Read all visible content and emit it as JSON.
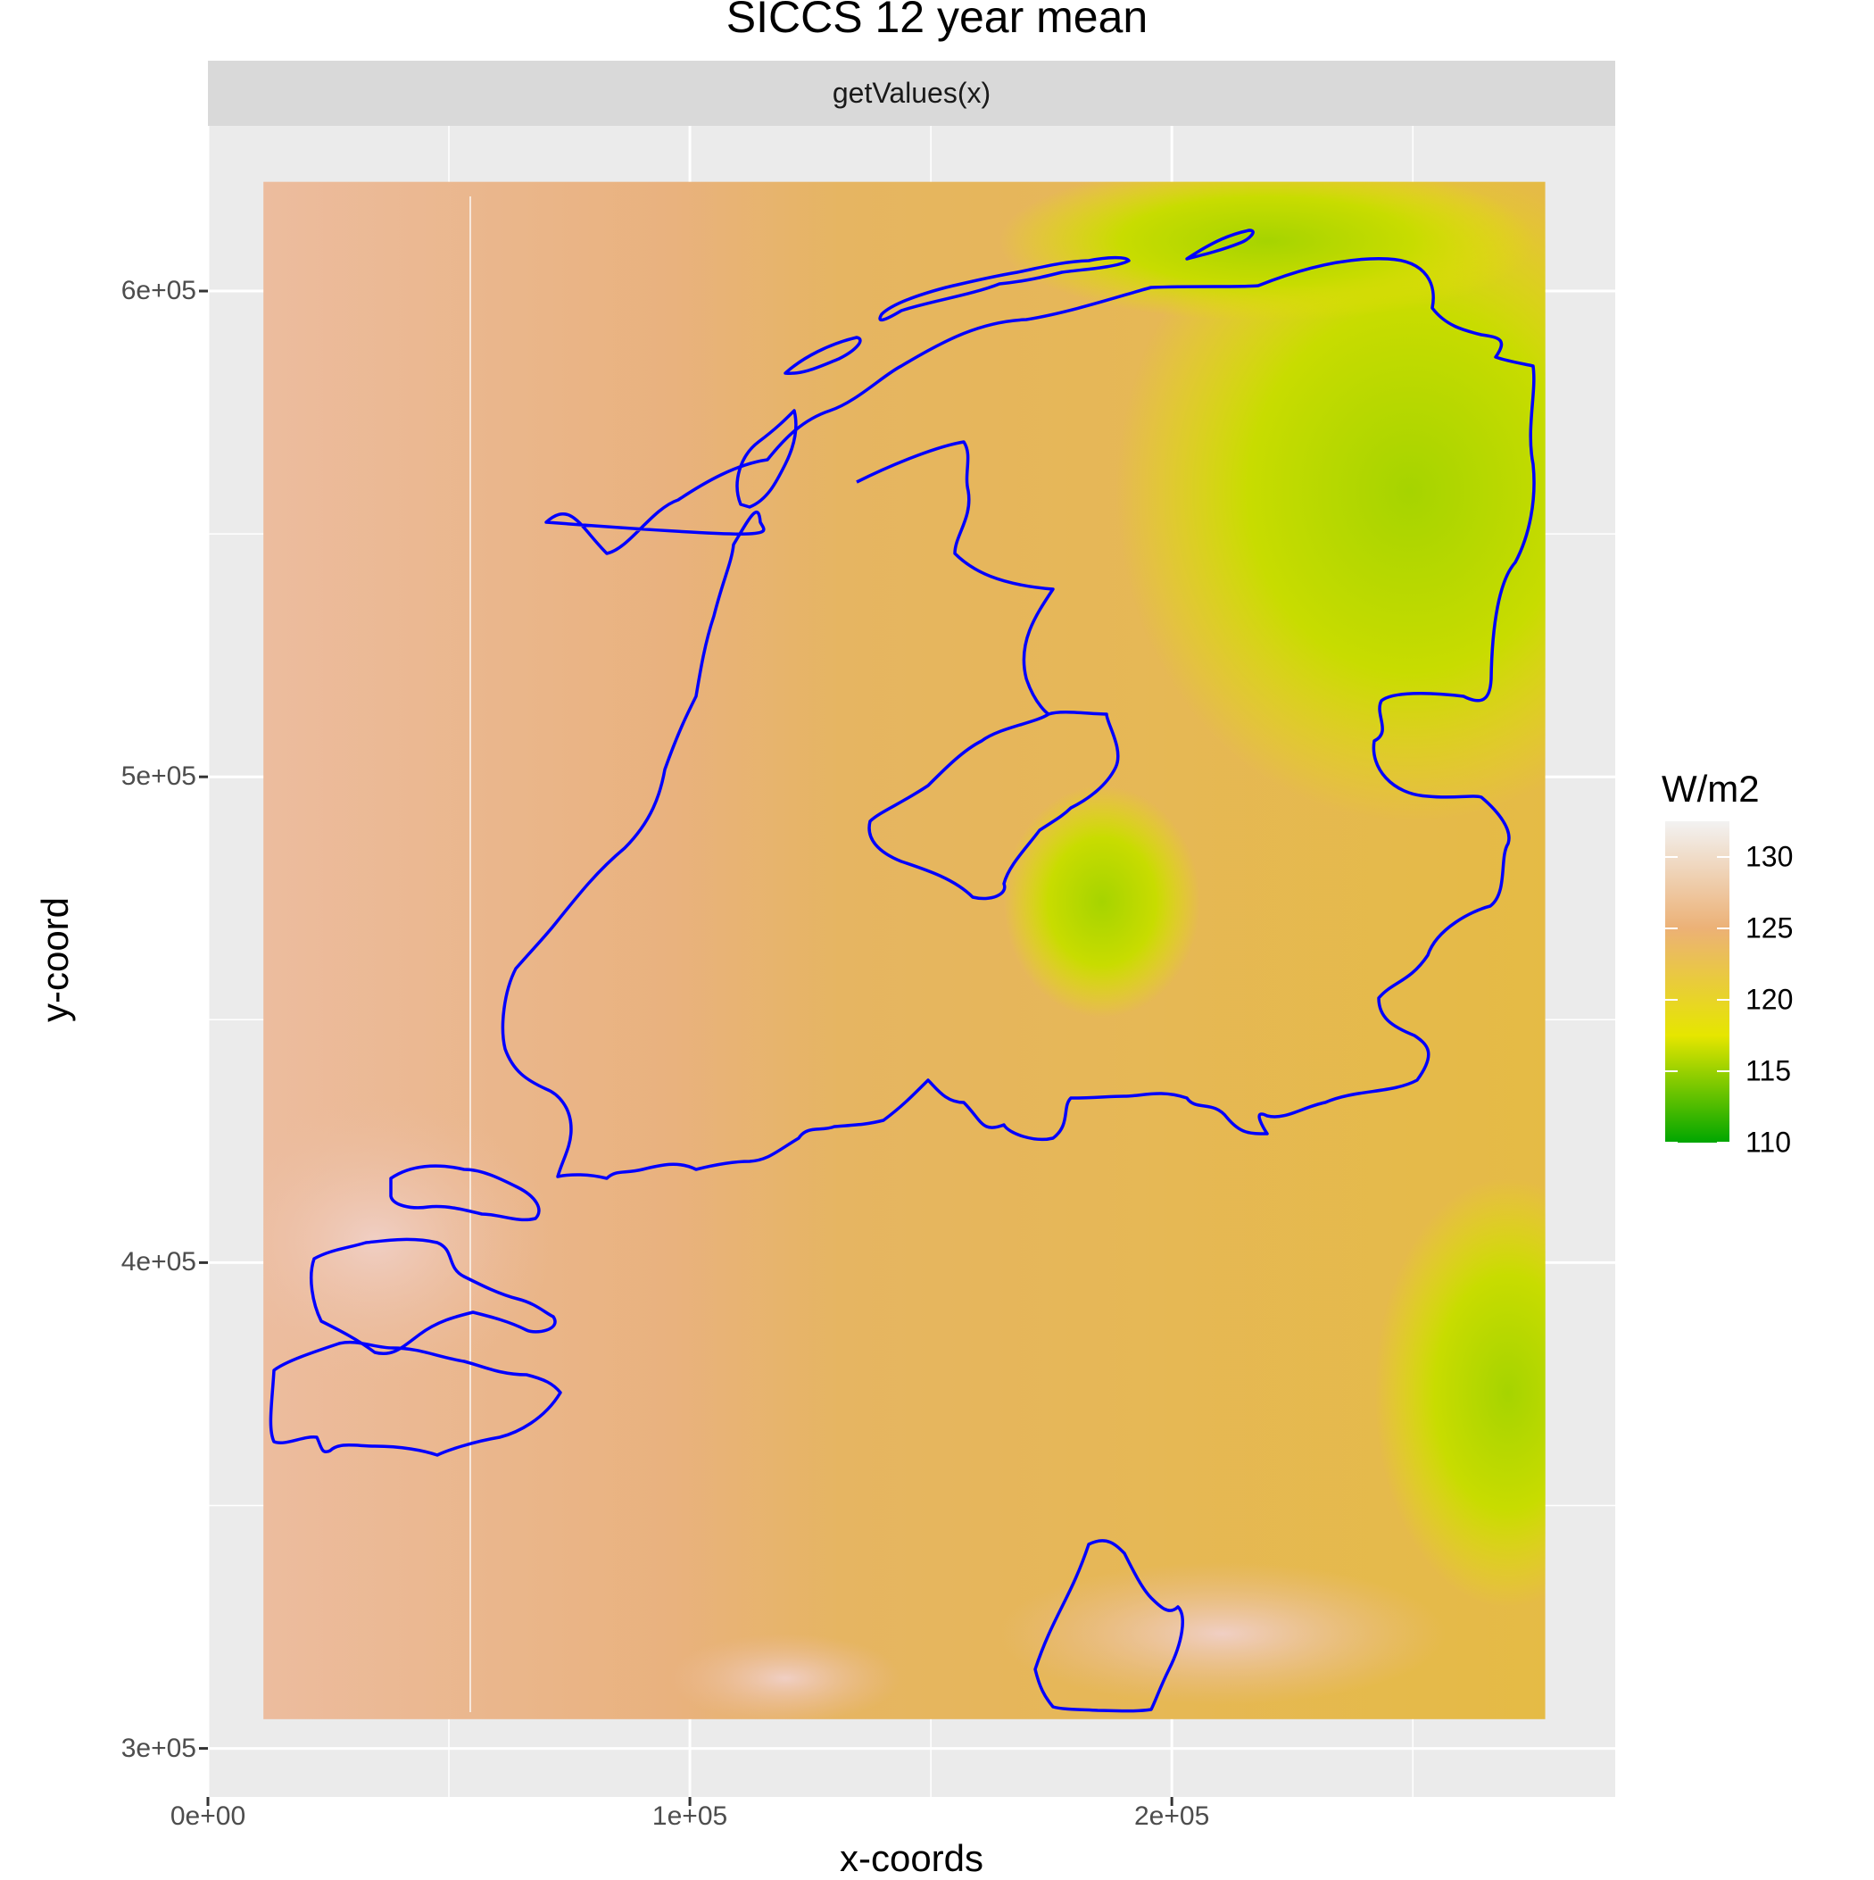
{
  "chart_data": {
    "type": "heatmap",
    "title": "SICCS 12 year mean",
    "facet_label": "getValues(x)",
    "xlabel": "x-coords",
    "ylabel": "y-coord",
    "xlim": [
      0,
      292000
    ],
    "ylim": [
      290000,
      634000
    ],
    "x_ticks": [
      {
        "value": 0,
        "label": "0e+00"
      },
      {
        "value": 100000,
        "label": "1e+05"
      },
      {
        "value": 200000,
        "label": "2e+05"
      }
    ],
    "y_ticks": [
      {
        "value": 300000,
        "label": "3e+05"
      },
      {
        "value": 400000,
        "label": "4e+05"
      },
      {
        "value": 500000,
        "label": "5e+05"
      },
      {
        "value": 600000,
        "label": "6e+05"
      }
    ],
    "grid": true,
    "raster_extent": {
      "xmin": 11500,
      "xmax": 277500,
      "ymin": 306000,
      "ymax": 622500
    },
    "legend": {
      "title": "W/m2",
      "position": "right",
      "ticks": [
        130,
        125,
        120,
        115,
        110
      ],
      "range": [
        110,
        132.5
      ],
      "colors": [
        "#00a600",
        "#e6e600",
        "#ecb176",
        "#f2f2f2"
      ]
    },
    "field_summary": {
      "west_sea_value": 128,
      "central_value": 124,
      "north_east_min_value": 116,
      "south_east_min_value": 117,
      "outline_color": "#0000ff"
    }
  }
}
